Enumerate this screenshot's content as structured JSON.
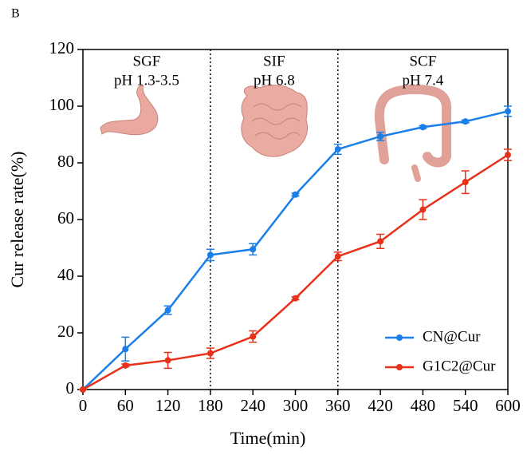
{
  "chart_data": {
    "type": "line",
    "panel_label": "B",
    "xlabel": "Time(min)",
    "ylabel": "Cur release rate(%)",
    "x": [
      0,
      60,
      120,
      180,
      240,
      300,
      360,
      420,
      480,
      540,
      600
    ],
    "series": [
      {
        "name": "CN@Cur",
        "color": "#1a7fe8",
        "values": [
          0,
          14.3,
          28,
          47.5,
          49.5,
          68.8,
          84.8,
          89.3,
          92.6,
          94.6,
          98.2
        ],
        "errors": [
          0,
          4.2,
          1.5,
          2,
          2,
          0.5,
          1.8,
          1.5,
          0.5,
          0.5,
          1.8
        ]
      },
      {
        "name": "G1C2@Cur",
        "color": "#e8311a",
        "values": [
          0,
          8.5,
          10.3,
          12.8,
          18.7,
          32.2,
          47,
          52.3,
          63.5,
          73.2,
          82.8
        ],
        "errors": [
          0,
          0.5,
          2.8,
          1.8,
          2,
          0.5,
          1.5,
          2.5,
          3.5,
          4,
          2
        ]
      }
    ],
    "xlim": [
      0,
      600
    ],
    "xticks": [
      0,
      60,
      120,
      180,
      240,
      300,
      360,
      420,
      480,
      540,
      600
    ],
    "ylim": [
      0,
      120
    ],
    "yticks": [
      0,
      20,
      40,
      60,
      80,
      100,
      120
    ],
    "dividers": [
      180,
      360
    ],
    "regions": [
      {
        "name": "SGF",
        "ph": "pH 1.3-3.5"
      },
      {
        "name": "SIF",
        "ph": "pH 6.8"
      },
      {
        "name": "SCF",
        "ph": "pH 7.4"
      }
    ],
    "legend": "lower right"
  }
}
